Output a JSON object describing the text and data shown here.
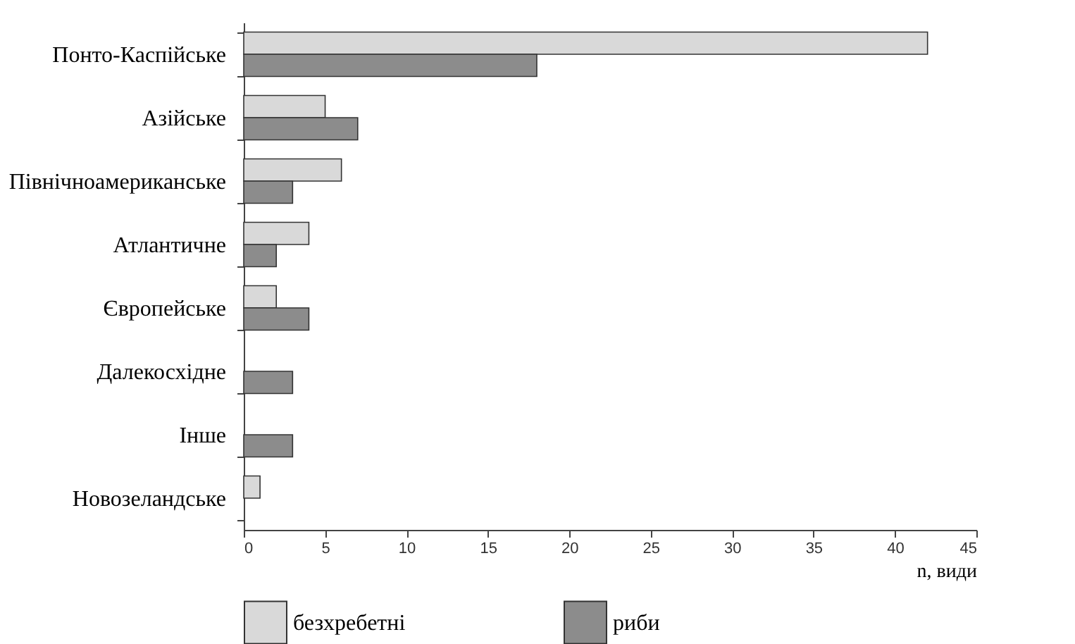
{
  "chart_data": {
    "type": "bar",
    "orientation": "horizontal",
    "xlabel": "n, види",
    "categories": [
      "Понто-Каспійське",
      "Азійське",
      "Північноамериканське",
      "Атлантичне",
      "Європейське",
      "Далекосхідне",
      "Інше",
      "Новозеландське"
    ],
    "series": [
      {
        "name": "безхребетні",
        "color": "#d9d9d9",
        "values": [
          42,
          5,
          6,
          4,
          2,
          null,
          null,
          1
        ]
      },
      {
        "name": "риби",
        "color": "#8c8c8c",
        "values": [
          18,
          7,
          3,
          2,
          4,
          3,
          3,
          null
        ]
      }
    ],
    "xlim": [
      0,
      45
    ],
    "xticks": [
      0,
      5,
      10,
      15,
      20,
      25,
      30,
      35,
      40,
      45
    ],
    "grid": false,
    "legend": "bottom"
  }
}
